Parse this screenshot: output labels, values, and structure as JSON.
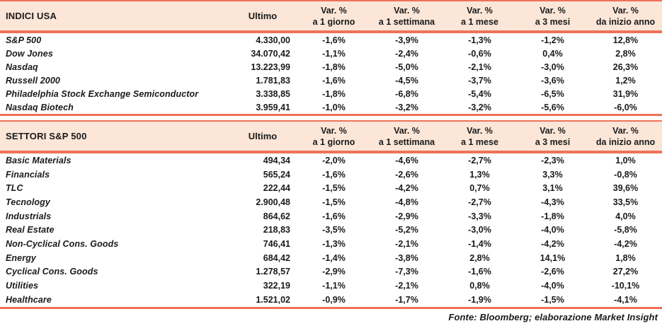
{
  "colors": {
    "accent": "#ee7258",
    "header-bg": "#fbe6d8",
    "text": "#1a1a1a"
  },
  "tables": [
    {
      "title": "INDICI USA",
      "ultimo_header": "Ultimo",
      "var_columns": [
        {
          "l1": "Var. %",
          "l2": "a 1 giorno"
        },
        {
          "l1": "Var. %",
          "l2": "a 1 settimana"
        },
        {
          "l1": "Var. %",
          "l2": "a 1 mese"
        },
        {
          "l1": "Var. %",
          "l2": "a 3 mesi"
        },
        {
          "l1": "Var. %",
          "l2": "da inizio anno"
        }
      ],
      "rows": [
        {
          "name": "S&P 500",
          "ultimo": "4.330,00",
          "pcts": [
            "-1,6%",
            "-3,9%",
            "-1,3%",
            "-1,2%",
            "12,8%"
          ]
        },
        {
          "name": "Dow Jones",
          "ultimo": "34.070,42",
          "pcts": [
            "-1,1%",
            "-2,4%",
            "-0,6%",
            "0,4%",
            "2,8%"
          ]
        },
        {
          "name": "Nasdaq",
          "ultimo": "13.223,99",
          "pcts": [
            "-1,8%",
            "-5,0%",
            "-2,1%",
            "-3,0%",
            "26,3%"
          ]
        },
        {
          "name": "Russell 2000",
          "ultimo": "1.781,83",
          "pcts": [
            "-1,6%",
            "-4,5%",
            "-3,7%",
            "-3,6%",
            "1,2%"
          ]
        },
        {
          "name": "Philadelphia Stock Exchange Semiconductor",
          "ultimo": "3.338,85",
          "pcts": [
            "-1,8%",
            "-6,8%",
            "-5,4%",
            "-6,5%",
            "31,9%"
          ]
        },
        {
          "name": "Nasdaq Biotech",
          "ultimo": "3.959,41",
          "pcts": [
            "-1,0%",
            "-3,2%",
            "-3,2%",
            "-5,6%",
            "-6,0%"
          ]
        }
      ]
    },
    {
      "title": "SETTORI S&P 500",
      "ultimo_header": "Ultimo",
      "var_columns": [
        {
          "l1": "Var. %",
          "l2": "a 1 giorno"
        },
        {
          "l1": "Var. %",
          "l2": "a 1 settimana"
        },
        {
          "l1": "Var. %",
          "l2": "a 1 mese"
        },
        {
          "l1": "Var. %",
          "l2": "a 3 mesi"
        },
        {
          "l1": "Var. %",
          "l2": "da inizio anno"
        }
      ],
      "rows": [
        {
          "name": "Basic Materials",
          "ultimo": "494,34",
          "pcts": [
            "-2,0%",
            "-4,6%",
            "-2,7%",
            "-2,3%",
            "1,0%"
          ]
        },
        {
          "name": "Financials",
          "ultimo": "565,24",
          "pcts": [
            "-1,6%",
            "-2,6%",
            "1,3%",
            "3,3%",
            "-0,8%"
          ]
        },
        {
          "name": "TLC",
          "ultimo": "222,44",
          "pcts": [
            "-1,5%",
            "-4,2%",
            "0,7%",
            "3,1%",
            "39,6%"
          ]
        },
        {
          "name": "Tecnology",
          "ultimo": "2.900,48",
          "pcts": [
            "-1,5%",
            "-4,8%",
            "-2,7%",
            "-4,3%",
            "33,5%"
          ]
        },
        {
          "name": "Industrials",
          "ultimo": "864,62",
          "pcts": [
            "-1,6%",
            "-2,9%",
            "-3,3%",
            "-1,8%",
            "4,0%"
          ]
        },
        {
          "name": "Real Estate",
          "ultimo": "218,83",
          "pcts": [
            "-3,5%",
            "-5,2%",
            "-3,0%",
            "-4,0%",
            "-5,8%"
          ]
        },
        {
          "name": "Non-Cyclical Cons. Goods",
          "ultimo": "746,41",
          "pcts": [
            "-1,3%",
            "-2,1%",
            "-1,4%",
            "-4,2%",
            "-4,2%"
          ]
        },
        {
          "name": "Energy",
          "ultimo": "684,42",
          "pcts": [
            "-1,4%",
            "-3,8%",
            "2,8%",
            "14,1%",
            "1,8%"
          ]
        },
        {
          "name": "Cyclical Cons. Goods",
          "ultimo": "1.278,57",
          "pcts": [
            "-2,9%",
            "-7,3%",
            "-1,6%",
            "-2,6%",
            "27,2%"
          ]
        },
        {
          "name": "Utilities",
          "ultimo": "322,19",
          "pcts": [
            "-1,1%",
            "-2,1%",
            "0,8%",
            "-4,0%",
            "-10,1%"
          ]
        },
        {
          "name": "Healthcare",
          "ultimo": "1.521,02",
          "pcts": [
            "-0,9%",
            "-1,7%",
            "-1,9%",
            "-1,5%",
            "-4,1%"
          ]
        }
      ]
    }
  ],
  "footer": {
    "source": "Fonte: Bloomberg; elaborazione Market Insight"
  }
}
